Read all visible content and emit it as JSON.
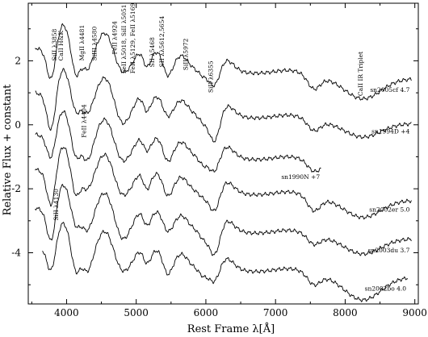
{
  "chart_data": {
    "type": "line",
    "xlabel": "Rest Frame λ[Å]",
    "ylabel": "Relative Flux + constant",
    "xlim": [
      3450,
      9050
    ],
    "ylim": [
      -5.6,
      3.8
    ],
    "x_ticks": [
      4000,
      5000,
      6000,
      7000,
      8000,
      9000
    ],
    "y_ticks": [
      -4,
      -2,
      0,
      2
    ],
    "series": [
      {
        "name": "sn2005cf 4.7",
        "x_range": [
          3550,
          8950
        ],
        "offset": 1.8
      },
      {
        "name": "sn1994D +4",
        "x_range": [
          3550,
          8950
        ],
        "offset": 0.4
      },
      {
        "name": "sn1990N +7",
        "x_range": [
          3550,
          7660
        ],
        "offset": -0.9
      },
      {
        "name": "sn2002er 5.0",
        "x_range": [
          3550,
          8950
        ],
        "offset": -2.0
      },
      {
        "name": "sn2003du 3.7",
        "x_range": [
          3550,
          8950
        ],
        "offset": -3.2
      },
      {
        "name": "sn2002bo 4.0",
        "x_range": [
          3650,
          8900
        ],
        "offset": -4.4
      }
    ],
    "line_ids": [
      {
        "text": "SiII λ3858",
        "x": 3858,
        "y": 2.0
      },
      {
        "text": "CaII H&K",
        "x": 3950,
        "y": 2.0
      },
      {
        "text": "MgII λ4481",
        "x": 4250,
        "y": 2.0
      },
      {
        "text": "SiIII λ4580",
        "x": 4430,
        "y": 2.0
      },
      {
        "text": "FeII λ4924",
        "x": 4720,
        "y": 2.2
      },
      {
        "text": "FeII λ5018, SiII λ5051",
        "x": 4850,
        "y": 1.6
      },
      {
        "text": "FeII λ5129, FeII λ5169",
        "x": 4980,
        "y": 1.6
      },
      {
        "text": "SII λ5468",
        "x": 5260,
        "y": 1.8
      },
      {
        "text": "SII λλ5612,5654",
        "x": 5400,
        "y": 1.8
      },
      {
        "text": "SiII λ5972",
        "x": 5740,
        "y": 1.7
      },
      {
        "text": "SiII λ6355",
        "x": 6100,
        "y": 1.0
      },
      {
        "text": "CaII IR Triplet",
        "x": 8250,
        "y": 0.9
      },
      {
        "text": "FeII λ4404",
        "x": 4280,
        "y": -0.4
      },
      {
        "text": "SiII λ4130",
        "x": 3880,
        "y": -3.0
      }
    ]
  }
}
